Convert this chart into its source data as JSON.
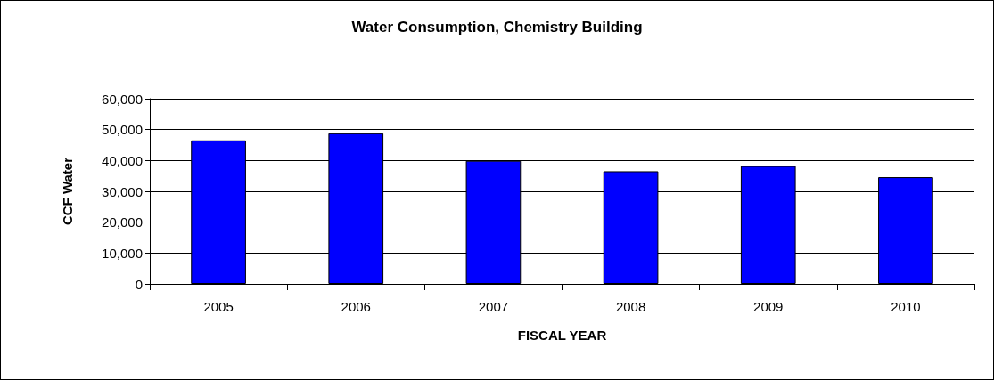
{
  "chart_data": {
    "type": "bar",
    "title": "Water Consumption, Chemistry Building",
    "xlabel": "FISCAL YEAR",
    "ylabel": "CCF Water",
    "categories": [
      "2005",
      "2006",
      "2007",
      "2008",
      "2009",
      "2010"
    ],
    "values": [
      46500,
      48800,
      39900,
      36500,
      38200,
      34600
    ],
    "color": "#0000ff",
    "ylim": [
      0,
      60000
    ],
    "yticks": [
      0,
      {
        "value": 10000,
        "label": "10,000"
      },
      {
        "value": 20000,
        "label": "20,000"
      },
      {
        "value": 30000,
        "label": "30,000"
      },
      {
        "value": 40000,
        "label": "40,000"
      },
      {
        "value": 50000,
        "label": "50,000"
      },
      {
        "value": 60000,
        "label": "60,000"
      }
    ],
    "grid": "y"
  }
}
